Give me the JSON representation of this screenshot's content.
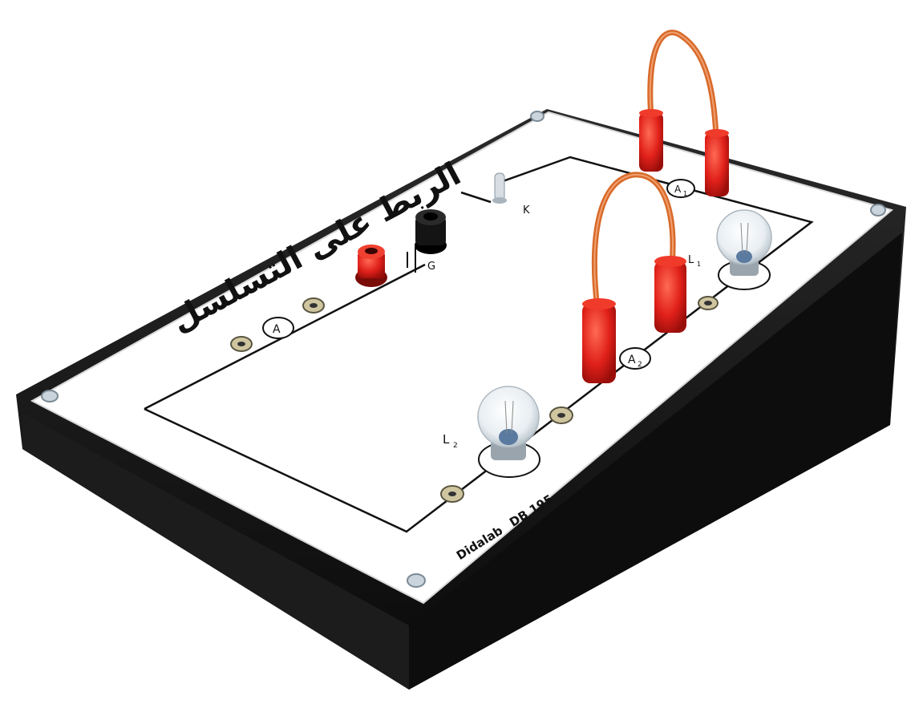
{
  "board": {
    "title_arabic": "الربط على التسلسل",
    "brand": "Didalab",
    "model": "DB 195",
    "labels": {
      "generator": "G",
      "switch": "K",
      "lamp1": "L",
      "lamp1_sub": "1",
      "lamp2": "L",
      "lamp2_sub": "2",
      "ammeter": "A",
      "ammeter1": "A",
      "ammeter1_sub": "1",
      "ammeter2": "A",
      "ammeter2_sub": "2"
    }
  },
  "colors": {
    "base": "#141414",
    "panel": "#ffffff",
    "wire": "#e07a3c",
    "plug": "#e0201a",
    "terminal_black": "#101010"
  }
}
